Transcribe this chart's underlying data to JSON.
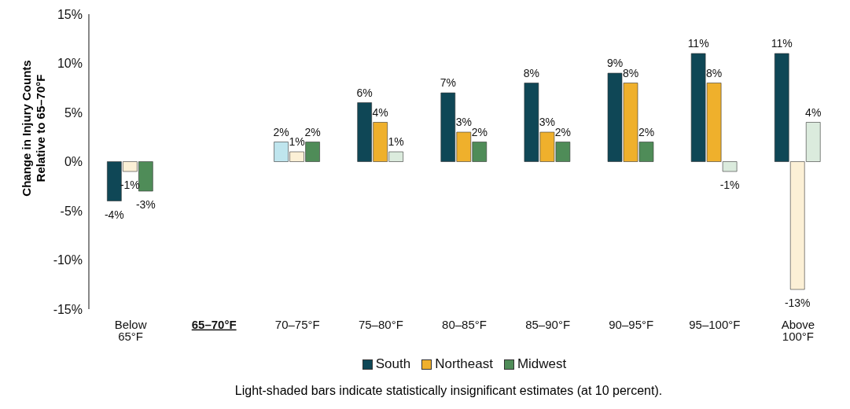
{
  "chart_data": {
    "type": "bar",
    "ylabel": "Change in Injury Counts Relative to 65–70°F",
    "categories": [
      "Below 65°F",
      "65–70°F",
      "70–75°F",
      "75–80°F",
      "80–85°F",
      "85–90°F",
      "90–95°F",
      "95–100°F",
      "Above 100°F"
    ],
    "series": [
      {
        "name": "South",
        "color": "#0f4756",
        "colors": [
          "#0f4756",
          null,
          "#bfe5ee",
          "#0f4756",
          "#0f4756",
          "#0f4756",
          "#0f4756",
          "#0f4756",
          "#0f4756"
        ],
        "values": [
          -4,
          null,
          2,
          6,
          7,
          8,
          9,
          11,
          11
        ],
        "value_labels": [
          "-4%",
          null,
          "2%",
          "6%",
          "7%",
          "8%",
          "9%",
          "11%",
          "11%"
        ]
      },
      {
        "name": "Northeast",
        "color": "#efb02c",
        "colors": [
          "#fcf0d6",
          null,
          "#fcf0d6",
          "#efb02c",
          "#efb02c",
          "#efb02c",
          "#efb02c",
          "#efb02c",
          "#fcf0d6"
        ],
        "values": [
          -1,
          null,
          1,
          4,
          3,
          3,
          8,
          8,
          -13
        ],
        "value_labels": [
          "-1%",
          null,
          "1%",
          "4%",
          "3%",
          "3%",
          "8%",
          "8%",
          "-13%"
        ]
      },
      {
        "name": "Midwest",
        "color": "#4f8c58",
        "colors": [
          "#4f8c58",
          null,
          "#4f8c58",
          "#dbebdd",
          "#4f8c58",
          "#4f8c58",
          "#4f8c58",
          "#dbebdd",
          "#dbebdd"
        ],
        "values": [
          -3,
          null,
          2,
          1,
          2,
          2,
          2,
          -1,
          4
        ],
        "value_labels": [
          "-3%",
          null,
          "2%",
          "1%",
          "2%",
          "2%",
          "2%",
          "-1%",
          "4%"
        ]
      }
    ],
    "ylim": [
      -15,
      15
    ],
    "yticks": [
      {
        "value": -15,
        "label": "-15%"
      },
      {
        "value": -10,
        "label": "-10%"
      },
      {
        "value": -5,
        "label": "-5%"
      },
      {
        "value": 0,
        "label": "0%"
      },
      {
        "value": 5,
        "label": "5%"
      },
      {
        "value": 10,
        "label": "10%"
      },
      {
        "value": 15,
        "label": "15%"
      }
    ],
    "grid": false,
    "legend": "bottom",
    "annotations": [
      "Light-shaded bars indicate statistically insignificant estimates (at 10 percent)."
    ]
  }
}
